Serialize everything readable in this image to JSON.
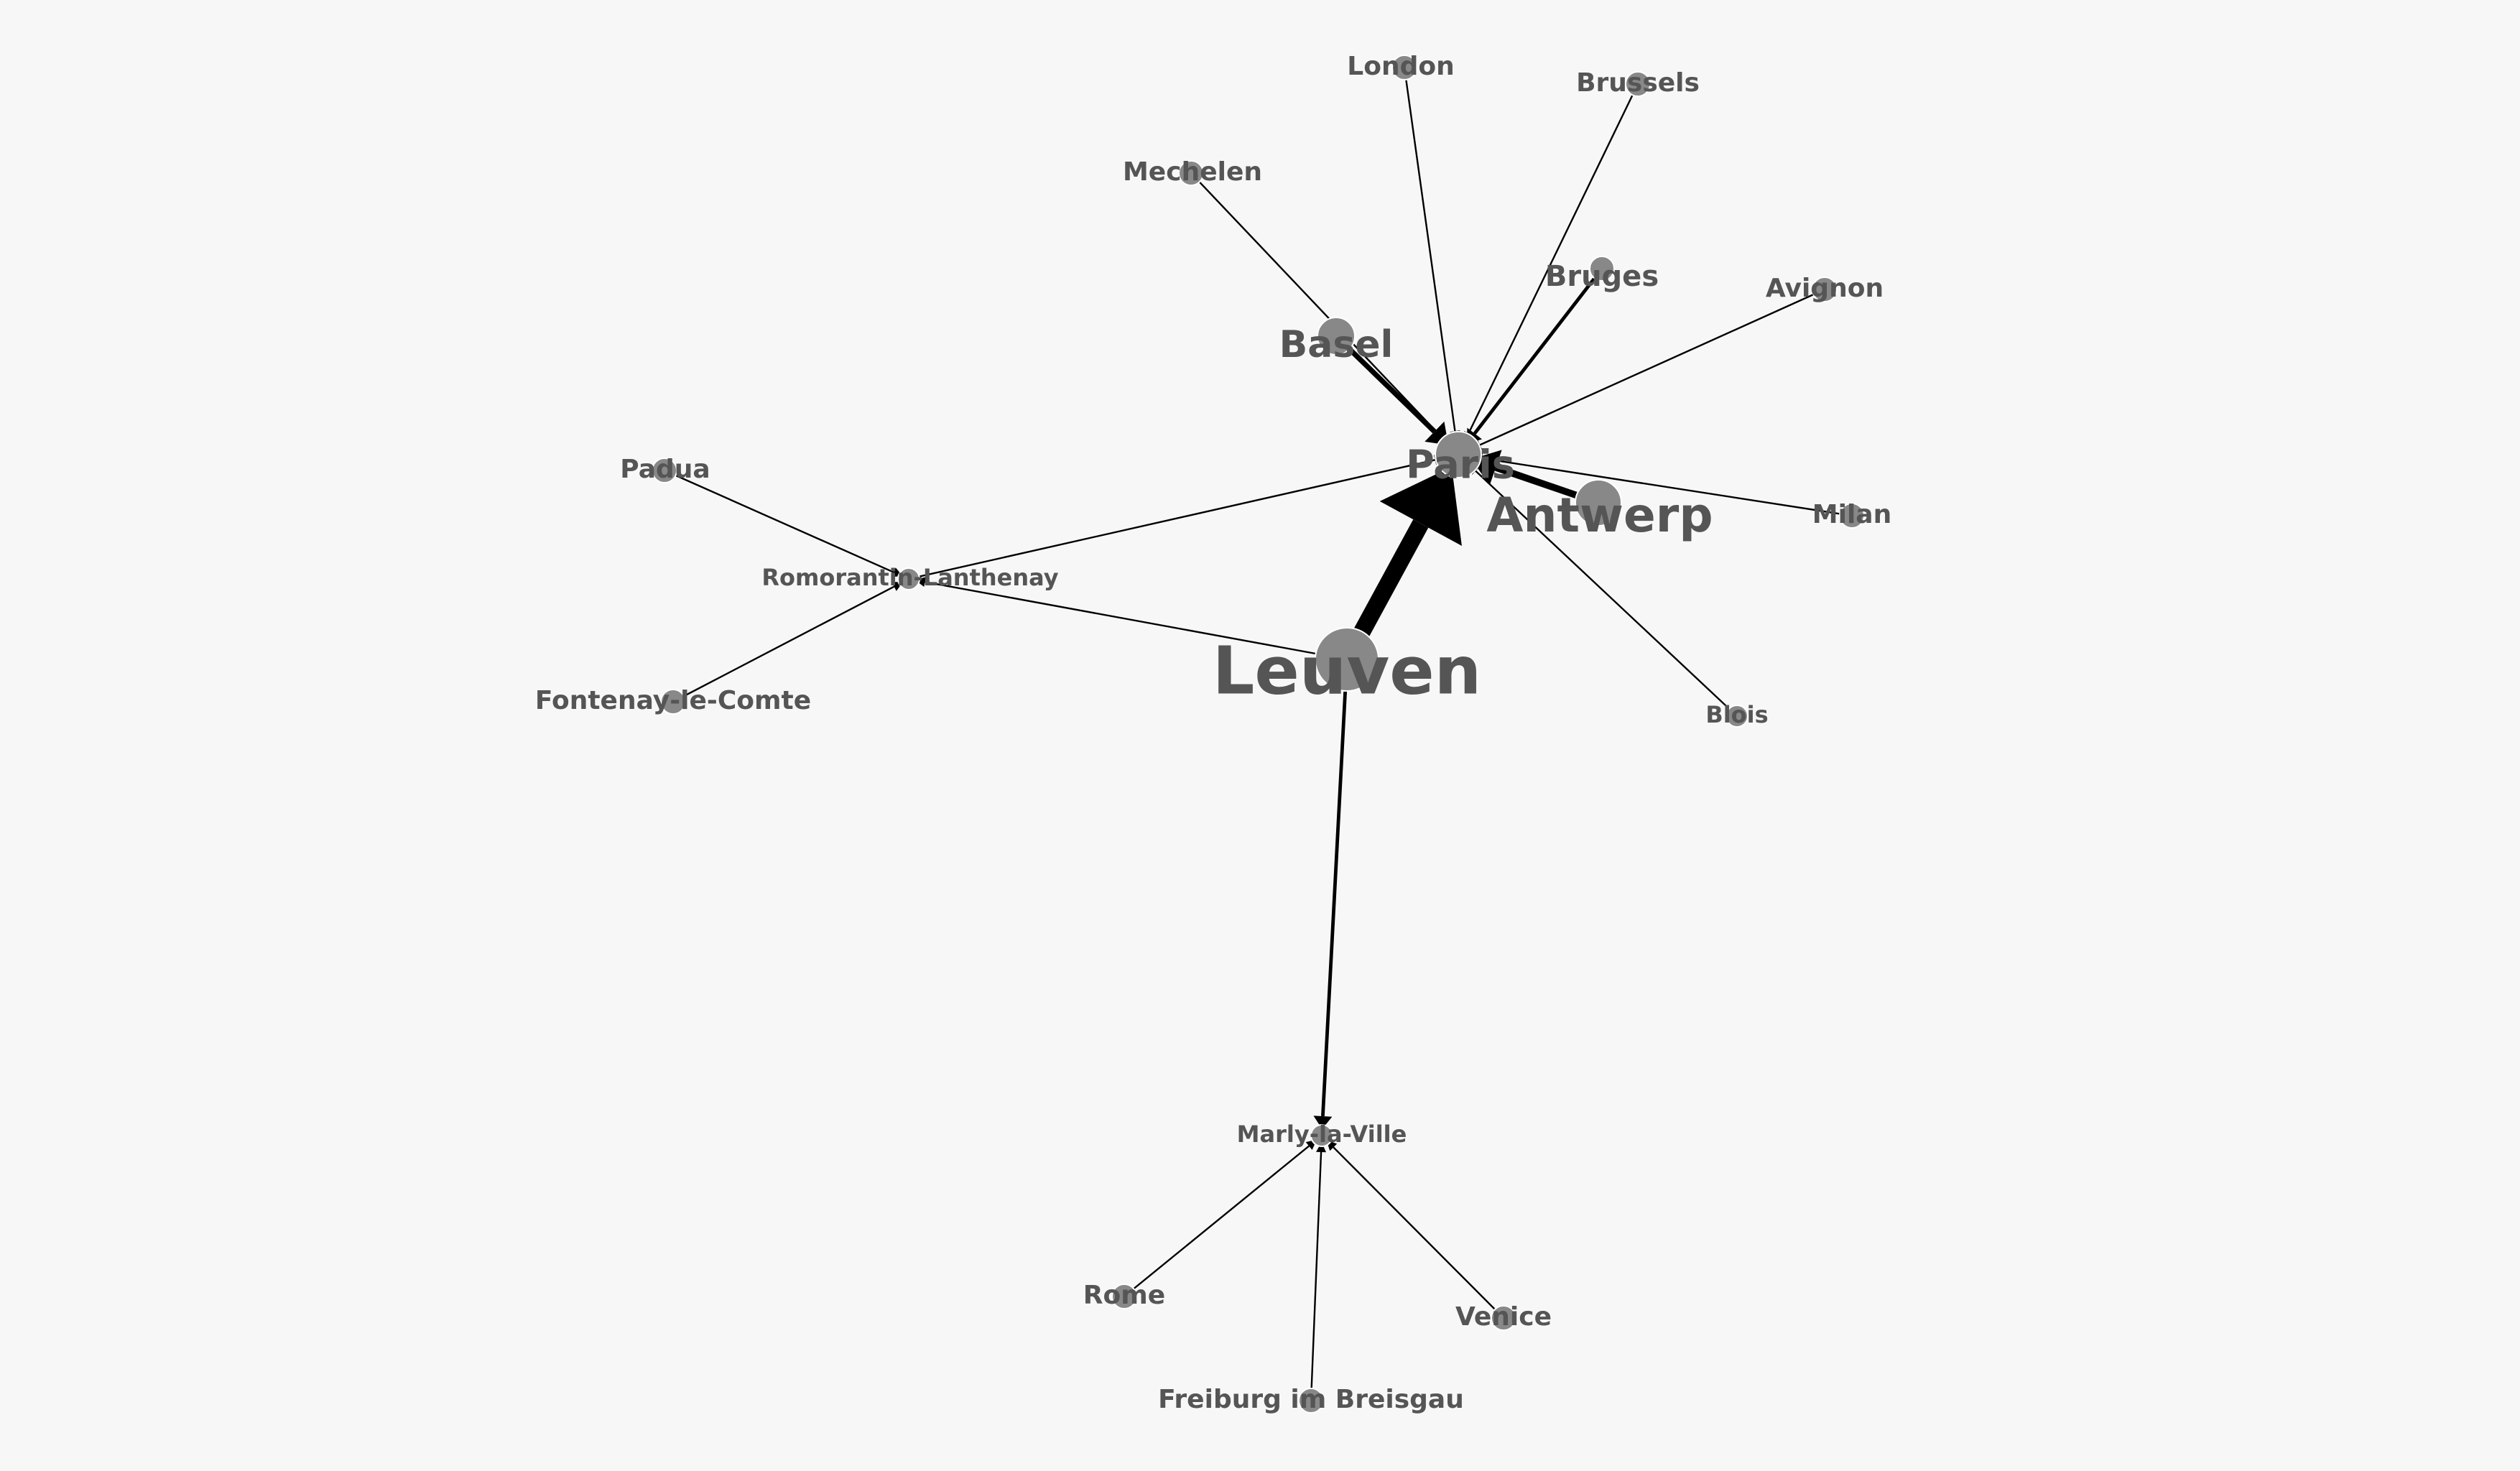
{
  "graph": {
    "colors": {
      "background": "#f7f7f7",
      "node": "#888888",
      "label": "#555555",
      "edge": "#000000"
    },
    "nodes": [
      {
        "id": "leuven",
        "label": "Leuven",
        "size": "xlarge"
      },
      {
        "id": "paris",
        "label": "Paris",
        "size": "large"
      },
      {
        "id": "antwerp",
        "label": "Antwerp",
        "size": "large"
      },
      {
        "id": "basel",
        "label": "Basel",
        "size": "medium"
      },
      {
        "id": "bruges",
        "label": "Bruges",
        "size": "small"
      },
      {
        "id": "london",
        "label": "London",
        "size": "small"
      },
      {
        "id": "brussels",
        "label": "Brussels",
        "size": "small"
      },
      {
        "id": "mechelen",
        "label": "Mechelen",
        "size": "small"
      },
      {
        "id": "avignon",
        "label": "Avignon",
        "size": "small"
      },
      {
        "id": "milan",
        "label": "Milan",
        "size": "small"
      },
      {
        "id": "blois",
        "label": "Blois",
        "size": "xsmall"
      },
      {
        "id": "padua",
        "label": "Padua",
        "size": "small"
      },
      {
        "id": "romorantin",
        "label": "Romorantin-Lanthenay",
        "size": "xsmall"
      },
      {
        "id": "fontenay",
        "label": "Fontenay-le-Comte",
        "size": "small"
      },
      {
        "id": "marly",
        "label": "Marly-la-Ville",
        "size": "xsmall"
      },
      {
        "id": "rome",
        "label": "Rome",
        "size": "small"
      },
      {
        "id": "venice",
        "label": "Venice",
        "size": "small"
      },
      {
        "id": "freiburg",
        "label": "Freiburg im Breisgau",
        "size": "small"
      }
    ],
    "edges": [
      {
        "source": "leuven",
        "target": "paris",
        "weight": 10
      },
      {
        "source": "antwerp",
        "target": "paris",
        "weight": 4
      },
      {
        "source": "basel",
        "target": "paris",
        "weight": 3
      },
      {
        "source": "bruges",
        "target": "paris",
        "weight": 2
      },
      {
        "source": "london",
        "target": "paris",
        "weight": 1
      },
      {
        "source": "brussels",
        "target": "paris",
        "weight": 1
      },
      {
        "source": "mechelen",
        "target": "paris",
        "weight": 1
      },
      {
        "source": "avignon",
        "target": "paris",
        "weight": 1
      },
      {
        "source": "milan",
        "target": "paris",
        "weight": 1
      },
      {
        "source": "blois",
        "target": "paris",
        "weight": 1
      },
      {
        "source": "romorantin",
        "target": "paris",
        "weight": 1
      },
      {
        "source": "leuven",
        "target": "romorantin",
        "weight": 1
      },
      {
        "source": "padua",
        "target": "romorantin",
        "weight": 1
      },
      {
        "source": "fontenay",
        "target": "romorantin",
        "weight": 1
      },
      {
        "source": "leuven",
        "target": "marly",
        "weight": 2
      },
      {
        "source": "rome",
        "target": "marly",
        "weight": 1
      },
      {
        "source": "venice",
        "target": "marly",
        "weight": 1
      },
      {
        "source": "freiburg",
        "target": "marly",
        "weight": 1
      }
    ]
  }
}
